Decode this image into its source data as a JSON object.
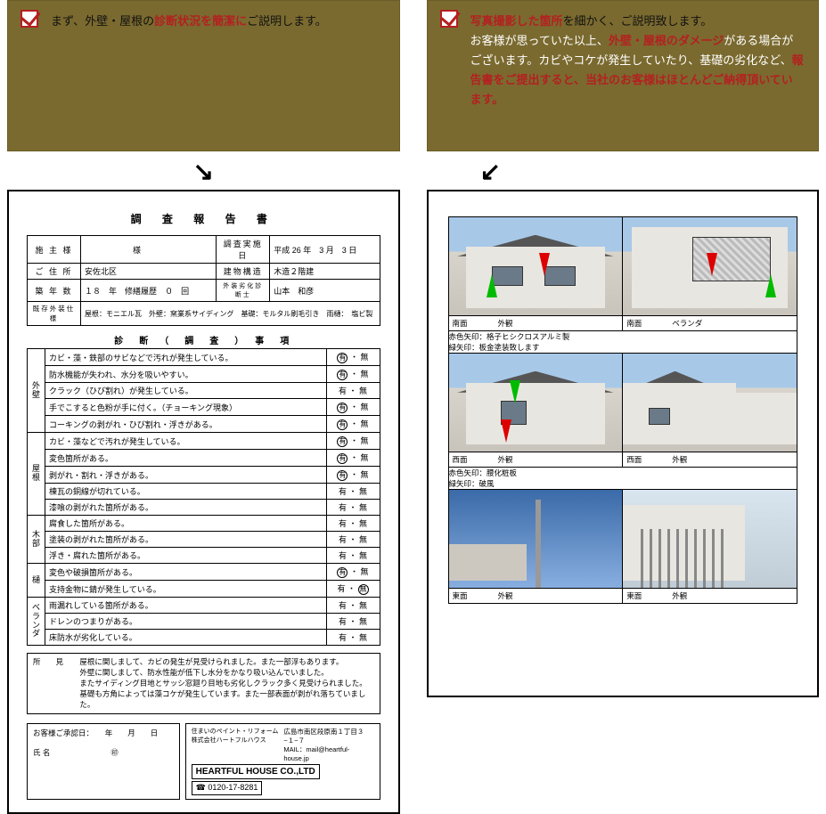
{
  "left": {
    "callout_pre": "まず、外壁・屋根の",
    "callout_strong": "診断状況を簡潔に",
    "callout_post": "ご説明します。"
  },
  "right": {
    "c1_strong": "写真撮影した箇所",
    "c1_post": "を細かく、ご説明致します。",
    "c2_pre": "お客様が思っていた以上、",
    "c2_strong": "外壁・屋根のダメージ",
    "c2_post": "がある場合がございます。カビやコケが発生していたり、基礎の劣化など、",
    "c3_strong": "報告書をご提出すると、当社のお客様はほとんどご納得頂いています。"
  },
  "doc": {
    "title": "調 査 報 告 書",
    "meta": {
      "owner_lbl": "施 主 様",
      "owner_val": "　　　　　　様",
      "date_lbl": "調査実施日",
      "date_val": "平成 26 年　3 月　3 日",
      "addr_lbl": "ご 住 所",
      "addr_val": "安佐北区",
      "struct_lbl": "建物構造",
      "struct_val": "木造２階建",
      "age_lbl": "築 年 数",
      "age_val": "１８　年",
      "repair_lbl": "修繕履歴",
      "repair_val": "０　回",
      "diag_lbl": "外装劣化診断士",
      "diag_val": "山本　和彦",
      "spec_lbl": "既存外装仕様",
      "spec_val": "屋根：モニエル瓦　外壁：窯業系サイディング　基礎：モルタル刷毛引き　雨樋：　塩ビ製"
    },
    "diag_title": "診　断　（　調　査　）　事　項",
    "cats": [
      "外壁",
      "屋根",
      "木部",
      "樋",
      "ベランダ"
    ],
    "rows_gaiheki": [
      {
        "t": "カビ・藻・鉄部のサビなどで汚れが発生している。",
        "y": true
      },
      {
        "t": "防水機能が失われ、水分を吸いやすい。",
        "y": true
      },
      {
        "t": "クラック（ひび割れ）が発生している。",
        "y": false
      },
      {
        "t": "手でこすると色粉が手に付く。（チョーキング現象）",
        "y": true
      },
      {
        "t": "コーキングの剥がれ・ひび割れ・浮きがある。",
        "y": true
      }
    ],
    "rows_yane": [
      {
        "t": "カビ・藻などで汚れが発生している。",
        "y": true
      },
      {
        "t": "変色箇所がある。",
        "y": true
      },
      {
        "t": "剥がれ・割れ・浮きがある。",
        "y": true
      },
      {
        "t": "棟瓦の銅線が切れている。",
        "y": false
      },
      {
        "t": "漆喰の剥がれた箇所がある。",
        "y": false
      }
    ],
    "rows_moku": [
      {
        "t": "腐食した箇所がある。",
        "y": false
      },
      {
        "t": "塗装の剥がれた箇所がある。",
        "y": false
      },
      {
        "t": "浮き・腐れた箇所がある。",
        "y": false
      }
    ],
    "rows_toi": [
      {
        "t": "変色や破損箇所がある。",
        "y": true
      },
      {
        "t": "支持金物に錆が発生している。",
        "y": false,
        "n": true
      }
    ],
    "rows_ver": [
      {
        "t": "雨漏れしている箇所がある。",
        "y": false
      },
      {
        "t": "ドレンのつまりがある。",
        "y": false
      },
      {
        "t": "床防水が劣化している。",
        "y": false
      }
    ],
    "remarks_lbl": "所　　見",
    "remarks": "屋根に関しまして、カビの発生が見受けられました。また一部浮もあります。\n外壁に関しまして、防水性能が低下し水分をかなり吸い込んでいました。\nまたサイディング目地とサッシ窓廻り目地も劣化しクラック多く見受けられました。\n基礎も方角によっては藻コケが発生しています。また一部表面が剥がれ落ちていました。",
    "sign_lbl": "お客様ご承認日：　　年　　月　　日",
    "sign_name": "氏 名　　　　　　　　㊞",
    "company_tag": "住まいのペイント・リフォーム\n株式会社ハートフルハウス",
    "company_addr": "広島市南区段原南１丁目３−１−７\nMAIL：mail@heartful-house.jp",
    "company_name": "HEARTFUL HOUSE CO.,LTD",
    "tel": "☎ 0120-17-8281"
  },
  "photos": {
    "cap1a": "南面　　　　外観",
    "cap1b": "南面　　　　ベランダ",
    "note1": "赤色矢印：格子ヒシクロスアルミ製\n緑矢印：板金塗装致します",
    "cap2a": "西面　　　　外観",
    "cap2b": "西面　　　　外観",
    "note2": "赤色矢印：腰化粧板\n緑矢印：破風",
    "cap3a": "東面　　　　外観",
    "cap3b": "東面　　　　外観"
  }
}
